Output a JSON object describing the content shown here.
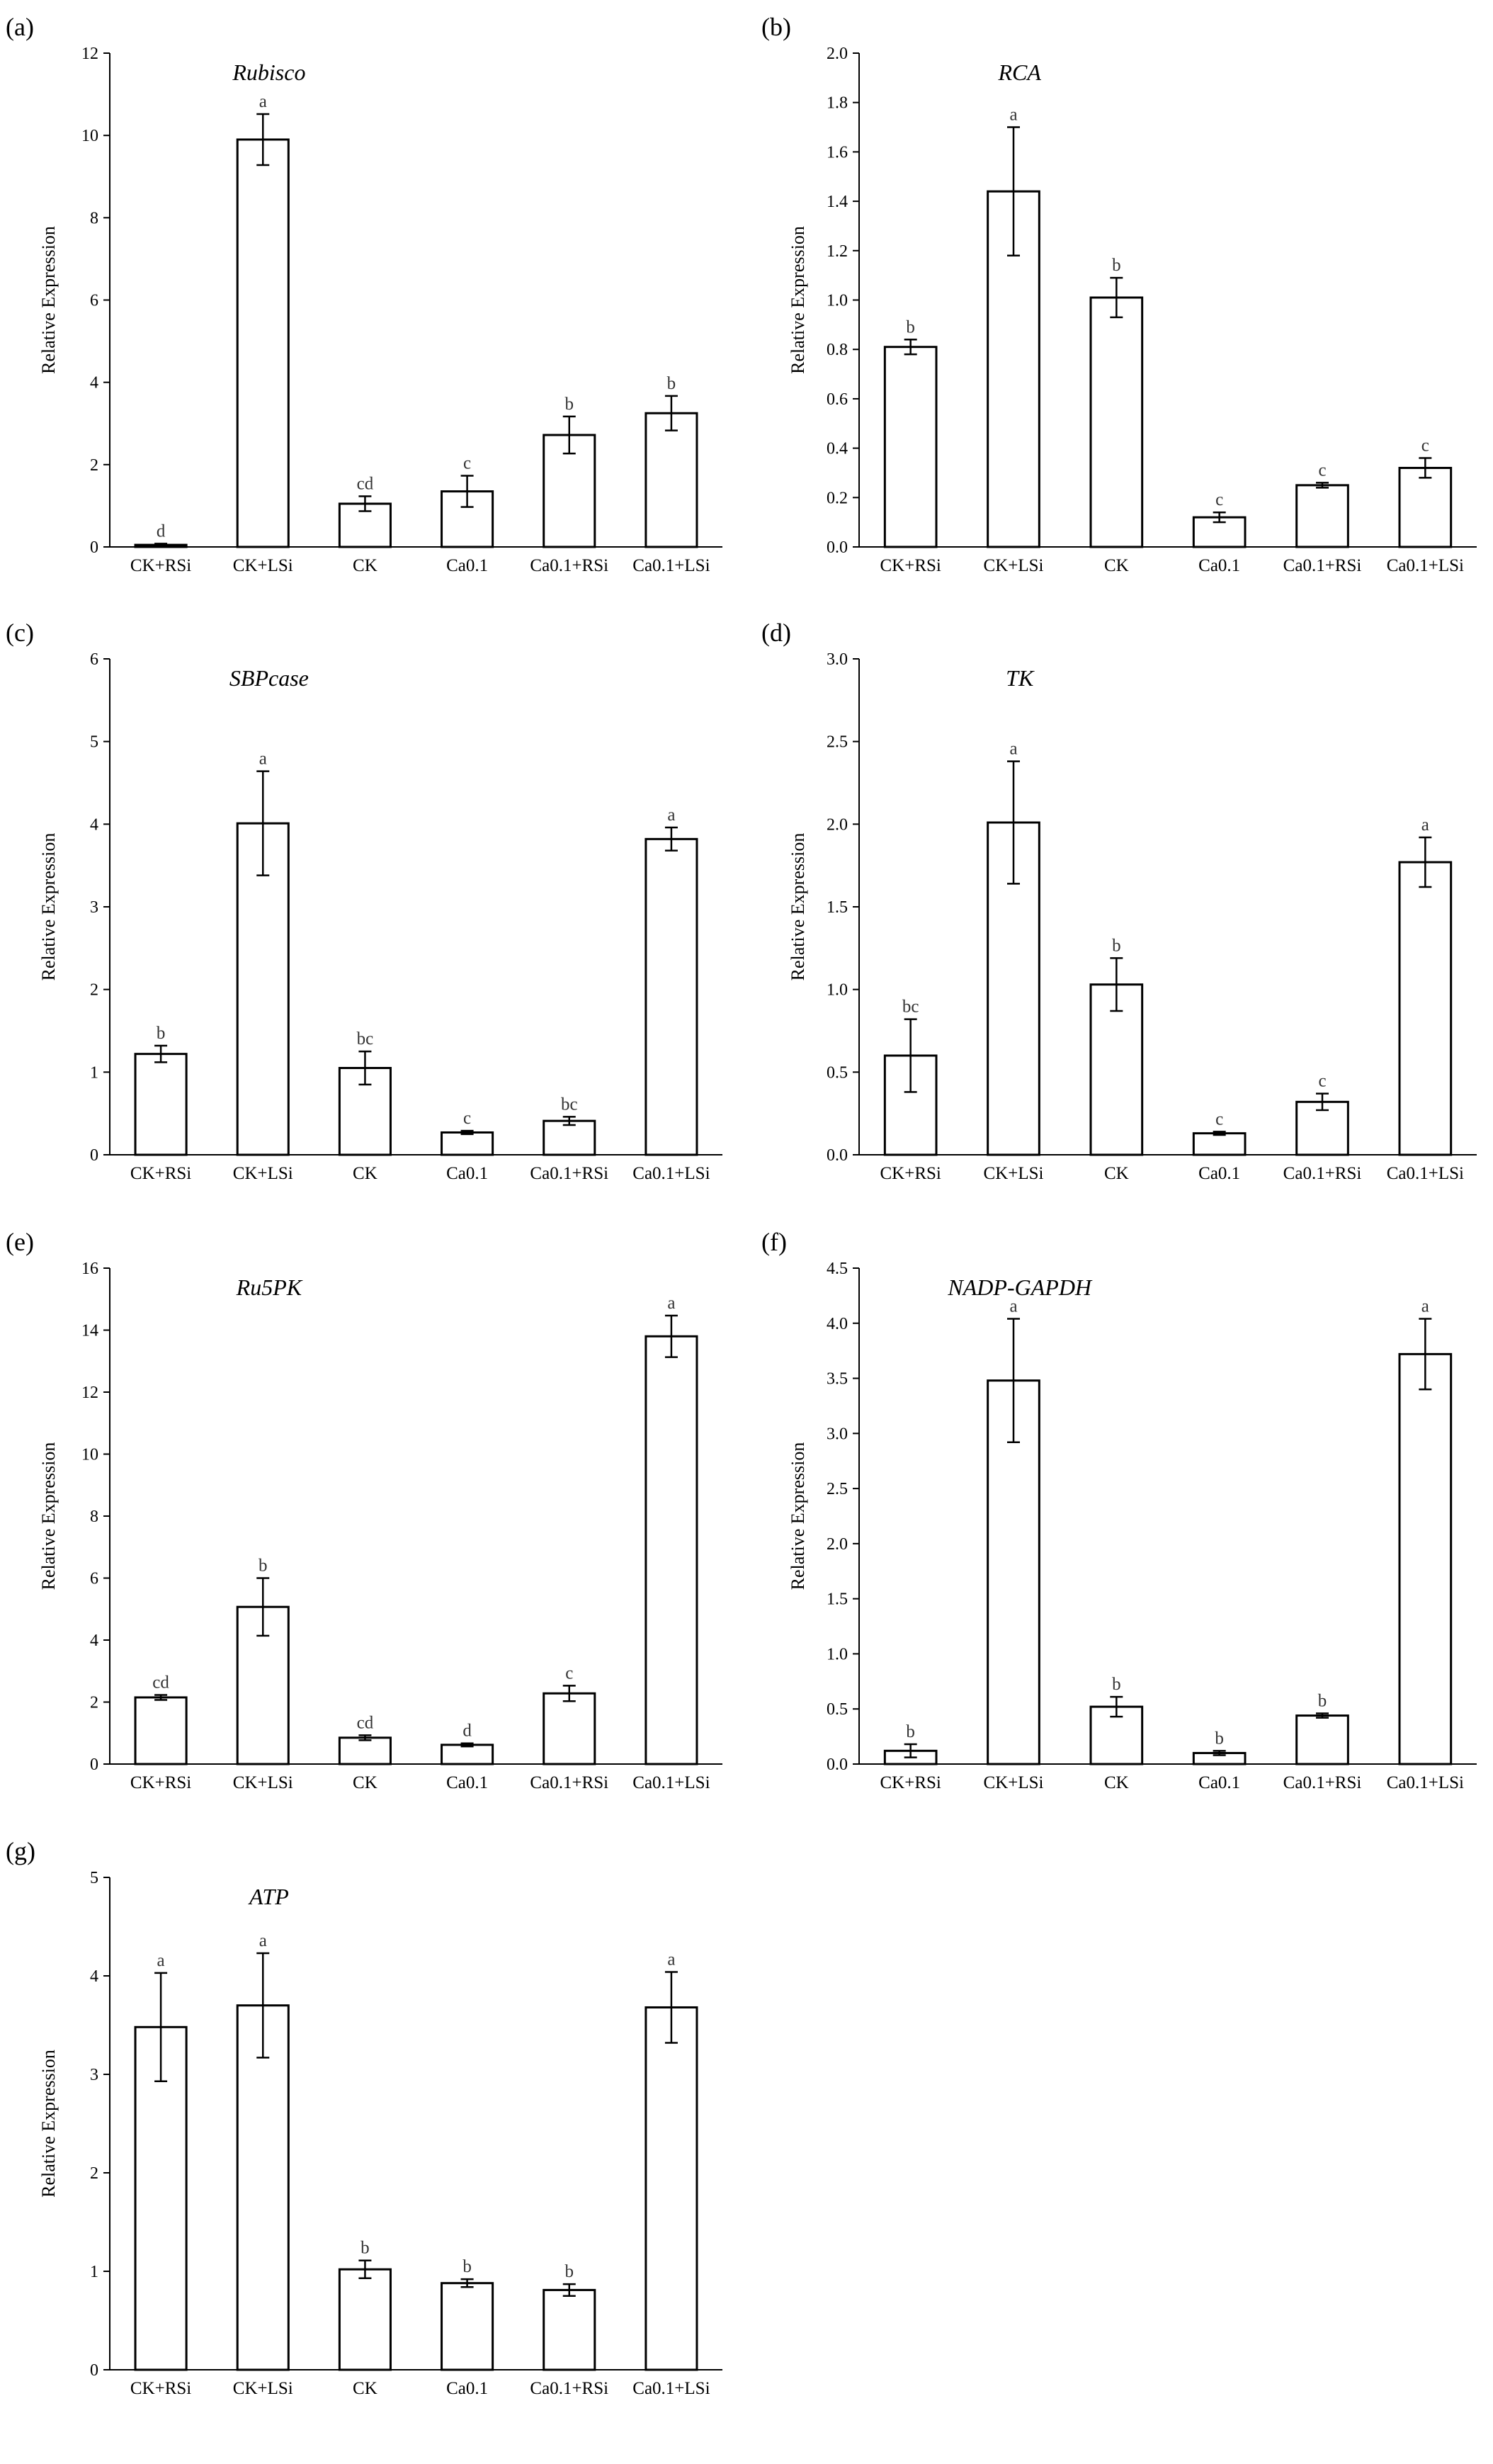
{
  "figure_labels": [
    "(a)",
    "(b)",
    "(c)",
    "(d)",
    "(e)",
    "(f)",
    "(g)"
  ],
  "chart_data": [
    {
      "type": "bar",
      "label": "(a)",
      "title": "Rubisco",
      "ylabel": "Relative Expression",
      "xlabel": "",
      "categories": [
        "CK+RSi",
        "CK+LSi",
        "CK",
        "Ca0.1",
        "Ca0.1+RSi",
        "Ca0.1+LSi"
      ],
      "values": [
        0.05,
        9.9,
        1.05,
        1.35,
        2.72,
        3.25
      ],
      "errors": [
        0.03,
        0.62,
        0.18,
        0.38,
        0.45,
        0.42
      ],
      "significance": [
        "d",
        "a",
        "cd",
        "c",
        "b",
        "b"
      ],
      "ylim": [
        0,
        12
      ],
      "yticks": [
        0,
        2,
        4,
        6,
        8,
        10,
        12
      ],
      "ytick_labels": [
        "0",
        "2",
        "4",
        "6",
        "8",
        "10",
        "12"
      ],
      "grid": false
    },
    {
      "type": "bar",
      "label": "(b)",
      "title": "RCA",
      "ylabel": "Relative Expression",
      "xlabel": "",
      "categories": [
        "CK+RSi",
        "CK+LSi",
        "CK",
        "Ca0.1",
        "Ca0.1+RSi",
        "Ca0.1+LSi"
      ],
      "values": [
        0.81,
        1.44,
        1.01,
        0.12,
        0.25,
        0.32
      ],
      "errors": [
        0.03,
        0.26,
        0.08,
        0.02,
        0.01,
        0.04
      ],
      "significance": [
        "b",
        "a",
        "b",
        "c",
        "c",
        "c"
      ],
      "ylim": [
        0,
        2.0
      ],
      "yticks": [
        0,
        0.2,
        0.4,
        0.6,
        0.8,
        1.0,
        1.2,
        1.4,
        1.6,
        1.8,
        2.0
      ],
      "ytick_labels": [
        "0.0",
        "0.2",
        "0.4",
        "0.6",
        "0.8",
        "1.0",
        "1.2",
        "1.4",
        "1.6",
        "1.8",
        "2.0"
      ],
      "grid": false
    },
    {
      "type": "bar",
      "label": "(c)",
      "title": "SBPcase",
      "ylabel": "Relative Expression",
      "xlabel": "",
      "categories": [
        "CK+RSi",
        "CK+LSi",
        "CK",
        "Ca0.1",
        "Ca0.1+RSi",
        "Ca0.1+LSi"
      ],
      "values": [
        1.22,
        4.01,
        1.05,
        0.27,
        0.41,
        3.82
      ],
      "errors": [
        0.1,
        0.63,
        0.2,
        0.02,
        0.05,
        0.14
      ],
      "significance": [
        "b",
        "a",
        "bc",
        "c",
        "bc",
        "a"
      ],
      "ylim": [
        0,
        6
      ],
      "yticks": [
        0,
        1,
        2,
        3,
        4,
        5,
        6
      ],
      "ytick_labels": [
        "0",
        "1",
        "2",
        "3",
        "4",
        "5",
        "6"
      ],
      "grid": false
    },
    {
      "type": "bar",
      "label": "(d)",
      "title": "TK",
      "ylabel": "Relative Expression",
      "xlabel": "",
      "categories": [
        "CK+RSi",
        "CK+LSi",
        "CK",
        "Ca0.1",
        "Ca0.1+RSi",
        "Ca0.1+LSi"
      ],
      "values": [
        0.6,
        2.01,
        1.03,
        0.13,
        0.32,
        1.77
      ],
      "errors": [
        0.22,
        0.37,
        0.16,
        0.01,
        0.05,
        0.15
      ],
      "significance": [
        "bc",
        "a",
        "b",
        "c",
        "c",
        "a"
      ],
      "ylim": [
        0,
        3.0
      ],
      "yticks": [
        0,
        0.5,
        1.0,
        1.5,
        2.0,
        2.5,
        3.0
      ],
      "ytick_labels": [
        "0.0",
        "0.5",
        "1.0",
        "1.5",
        "2.0",
        "2.5",
        "3.0"
      ],
      "grid": false
    },
    {
      "type": "bar",
      "label": "(e)",
      "title": "Ru5PK",
      "ylabel": "Relative Expression",
      "xlabel": "",
      "categories": [
        "CK+RSi",
        "CK+LSi",
        "CK",
        "Ca0.1",
        "Ca0.1+RSi",
        "Ca0.1+LSi"
      ],
      "values": [
        2.15,
        5.07,
        0.85,
        0.62,
        2.28,
        13.8
      ],
      "errors": [
        0.08,
        0.93,
        0.08,
        0.05,
        0.25,
        0.67
      ],
      "significance": [
        "cd",
        "b",
        "cd",
        "d",
        "c",
        "a"
      ],
      "ylim": [
        0,
        16
      ],
      "yticks": [
        0,
        2,
        4,
        6,
        8,
        10,
        12,
        14,
        16
      ],
      "ytick_labels": [
        "0",
        "2",
        "4",
        "6",
        "8",
        "10",
        "12",
        "14",
        "16"
      ],
      "grid": false
    },
    {
      "type": "bar",
      "label": "(f)",
      "title": "NADP-GAPDH",
      "ylabel": "Relative Expression",
      "xlabel": "",
      "categories": [
        "CK+RSi",
        "CK+LSi",
        "CK",
        "Ca0.1",
        "Ca0.1+RSi",
        "Ca0.1+LSi"
      ],
      "values": [
        0.12,
        3.48,
        0.52,
        0.1,
        0.44,
        3.72
      ],
      "errors": [
        0.06,
        0.56,
        0.09,
        0.02,
        0.02,
        0.32
      ],
      "significance": [
        "b",
        "a",
        "b",
        "b",
        "b",
        "a"
      ],
      "ylim": [
        0,
        4.5
      ],
      "yticks": [
        0,
        0.5,
        1.0,
        1.5,
        2.0,
        2.5,
        3.0,
        3.5,
        4.0,
        4.5
      ],
      "ytick_labels": [
        "0.0",
        "0.5",
        "1.0",
        "1.5",
        "2.0",
        "2.5",
        "3.0",
        "3.5",
        "4.0",
        "4.5"
      ],
      "grid": false
    },
    {
      "type": "bar",
      "label": "(g)",
      "title": "ATP",
      "ylabel": "Relative Expression",
      "xlabel": "",
      "categories": [
        "CK+RSi",
        "CK+LSi",
        "CK",
        "Ca0.1",
        "Ca0.1+RSi",
        "Ca0.1+LSi"
      ],
      "values": [
        3.48,
        3.7,
        1.02,
        0.88,
        0.81,
        3.68
      ],
      "errors": [
        0.55,
        0.53,
        0.09,
        0.04,
        0.06,
        0.36
      ],
      "significance": [
        "a",
        "a",
        "b",
        "b",
        "b",
        "a"
      ],
      "ylim": [
        0,
        5
      ],
      "yticks": [
        0,
        1,
        2,
        3,
        4,
        5
      ],
      "ytick_labels": [
        "0",
        "1",
        "2",
        "3",
        "4",
        "5"
      ],
      "grid": false
    }
  ]
}
